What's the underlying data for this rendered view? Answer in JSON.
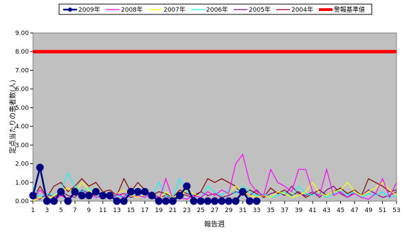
{
  "chart_data": {
    "type": "line",
    "title": "",
    "xlabel": "報告週",
    "ylabel": "定点当たりの患者数(人)",
    "ylim": [
      0,
      9
    ],
    "xlim": [
      1,
      53
    ],
    "grid": false,
    "legend_placement": "top",
    "plot_background": "#c0c0c0",
    "y_ticks": [
      "0.00",
      "1.00",
      "2.00",
      "3.00",
      "4.00",
      "5.00",
      "6.00",
      "7.00",
      "8.00",
      "9.00"
    ],
    "x_ticks": [
      "1",
      "3",
      "5",
      "7",
      "9",
      "11",
      "13",
      "15",
      "17",
      "19",
      "21",
      "23",
      "25",
      "27",
      "29",
      "31",
      "33",
      "35",
      "37",
      "39",
      "41",
      "43",
      "45",
      "47",
      "49",
      "51",
      "53"
    ],
    "series": [
      {
        "name": "2009年",
        "color": "#000080",
        "width": 2.5,
        "markers": true,
        "values": [
          0.3,
          1.8,
          0,
          0,
          0.5,
          0,
          0.5,
          0.3,
          0.3,
          0.5,
          0.3,
          0.3,
          0,
          0,
          0.5,
          0.5,
          0.5,
          0.3,
          0,
          0,
          0,
          0.3,
          0.8,
          0,
          0,
          0,
          0,
          0,
          0,
          0,
          0.5,
          0,
          0
        ]
      },
      {
        "name": "2008年",
        "color": "#ff00ff",
        "width": 1.2,
        "markers": false,
        "values": [
          0.1,
          0.6,
          0.2,
          0,
          0.3,
          0.1,
          0.5,
          0.2,
          0.4,
          0.2,
          0.3,
          0.1,
          0.4,
          0.2,
          0.7,
          0.3,
          0.2,
          0.5,
          0,
          1.2,
          0.1,
          0.2,
          0.1,
          0.3,
          0.2,
          0.5,
          0.3,
          0.6,
          0.4,
          2.0,
          2.5,
          1.0,
          0.5,
          0.3,
          1.7,
          1.0,
          0.8,
          0.5,
          1.7,
          1.7,
          0.5,
          0.3,
          1.7,
          0.3,
          0.5,
          0.2,
          0.4,
          0.2,
          0.1,
          0.4,
          1.2,
          0.2,
          1.0
        ]
      },
      {
        "name": "2007年",
        "color": "#ffff00",
        "width": 1.2,
        "markers": false,
        "values": [
          0,
          0.2,
          0.1,
          0.3,
          0.5,
          0.7,
          0.4,
          1.0,
          0.6,
          0.3,
          0.5,
          0.2,
          0.4,
          0.6,
          0.3,
          0.2,
          0.4,
          0.3,
          0.1,
          0.5,
          0.2,
          0.3,
          0.6,
          0.4,
          0.2,
          0.5,
          0.3,
          0.6,
          0.4,
          0.8,
          0.5,
          0.3,
          0.2,
          0.3,
          0.2,
          0.5,
          0.4,
          0.2,
          0.3,
          0.5,
          1.0,
          0.4,
          0.3,
          0.5,
          0.6,
          1.0,
          0.5,
          0.3,
          0.5,
          0.7,
          1.0,
          0.6,
          0.3
        ]
      },
      {
        "name": "2006年",
        "color": "#00ffff",
        "width": 1.2,
        "markers": false,
        "values": [
          0.8,
          0.2,
          0.4,
          0.3,
          0.6,
          1.5,
          0.8,
          0.5,
          0.7,
          0.3,
          0.2,
          0.4,
          0.3,
          0.2,
          0.5,
          0.3,
          0.4,
          0.2,
          1.0,
          0.3,
          0.2,
          1.2,
          0.5,
          0.3,
          0.2,
          0.8,
          0.5,
          0.3,
          0.6,
          0.4,
          0.8,
          0.5,
          0.3,
          0.4,
          0.2,
          0.3,
          0.5,
          0.2,
          0.8,
          0.4,
          0.3,
          0.5,
          0.2,
          0.4,
          0.6,
          0.3,
          0.5,
          0.2,
          0.4,
          0.3,
          0.5,
          0.2,
          0.3
        ]
      },
      {
        "name": "2005年",
        "color": "#800080",
        "width": 1.2,
        "markers": false,
        "values": [
          0.2,
          0.1,
          0.4,
          0.2,
          0.5,
          0.3,
          0.2,
          0.6,
          0.4,
          0.3,
          0.5,
          0.2,
          0.3,
          0.4,
          0.2,
          0.3,
          0.5,
          0.4,
          0.2,
          0.3,
          0.1,
          0.4,
          0.3,
          0.2,
          0.5,
          0.3,
          0.4,
          0.2,
          0.3,
          0.5,
          0.4,
          0.3,
          0.6,
          0.2,
          0.4,
          0.5,
          0.3,
          0.8,
          0.4,
          0.3,
          0.5,
          0.2,
          0.6,
          0.8,
          0.4,
          0.2,
          0.5,
          0.3,
          0.6,
          0.4,
          0.2,
          0.3,
          0.5
        ]
      },
      {
        "name": "2004年",
        "color": "#800000",
        "width": 1.2,
        "markers": false,
        "values": [
          0.1,
          0.8,
          0.2,
          0.8,
          1.0,
          0.5,
          0.8,
          1.2,
          0.8,
          1.0,
          0.5,
          0.6,
          0.3,
          1.2,
          0.5,
          1.0,
          0.6,
          0.3,
          0.5,
          0.4,
          0.2,
          0.6,
          0.4,
          0.3,
          0.5,
          1.2,
          1.0,
          1.2,
          1.0,
          0.8,
          0.3,
          0.6,
          0.4,
          0.2,
          0.7,
          0.4,
          0.6,
          0.3,
          0.5,
          0.2,
          0.4,
          0.6,
          0.3,
          0.5,
          0.7,
          0.4,
          0.6,
          0.3,
          1.2,
          1.0,
          0.8,
          0.5,
          0.6
        ]
      },
      {
        "name": "警報基準値",
        "color": "#ff0000",
        "width": 5,
        "markers": false,
        "values": [
          8,
          8
        ]
      }
    ]
  }
}
